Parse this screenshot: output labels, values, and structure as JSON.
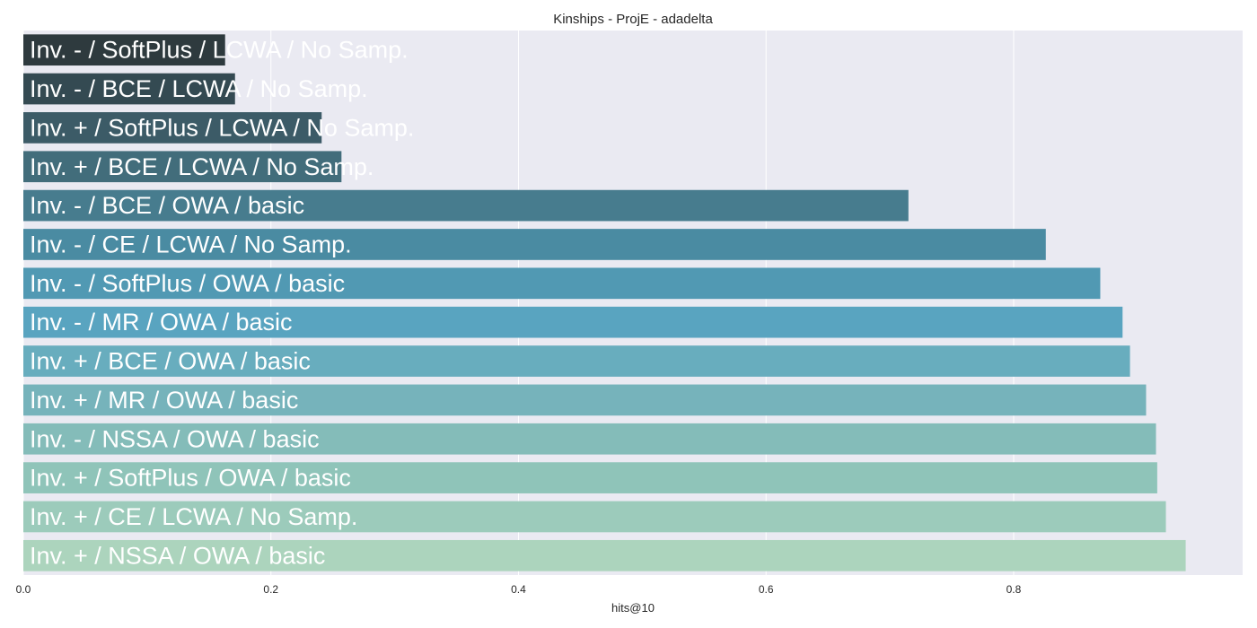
{
  "chart_data": {
    "type": "bar",
    "orientation": "horizontal",
    "title": "Kinships - ProjE - adadelta",
    "xlabel": "hits@10",
    "ylabel": "",
    "xlim": [
      0,
      0.985
    ],
    "xticks": [
      0.0,
      0.2,
      0.4,
      0.6,
      0.8
    ],
    "xtick_labels": [
      "0.0",
      "0.2",
      "0.4",
      "0.6",
      "0.8"
    ],
    "grid": true,
    "categories": [
      "Inv. - / SoftPlus / LCWA / No Samp.",
      "Inv. - / BCE / LCWA / No Samp.",
      "Inv. + / SoftPlus / LCWA / No Samp.",
      "Inv. + / BCE / LCWA / No Samp.",
      "Inv. - / BCE / OWA / basic",
      "Inv. - / CE / LCWA / No Samp.",
      "Inv. - / SoftPlus / OWA / basic",
      "Inv. - / MR / OWA / basic",
      "Inv. + / BCE / OWA / basic",
      "Inv. + / MR / OWA / basic",
      "Inv. - / NSSA / OWA / basic",
      "Inv. + / SoftPlus / OWA / basic",
      "Inv. + / CE / LCWA / No Samp.",
      "Inv. + / NSSA / OWA / basic"
    ],
    "values": [
      0.163,
      0.171,
      0.241,
      0.257,
      0.715,
      0.826,
      0.87,
      0.888,
      0.894,
      0.907,
      0.915,
      0.916,
      0.923,
      0.939
    ],
    "colors": [
      "#2e3a3e",
      "#344a52",
      "#3c5b67",
      "#426d7b",
      "#477c8e",
      "#4a8ba2",
      "#5199b3",
      "#59a4c0",
      "#68adbe",
      "#76b3bb",
      "#84bcb9",
      "#8fc4b9",
      "#9ccbbb",
      "#acd4bd"
    ]
  }
}
